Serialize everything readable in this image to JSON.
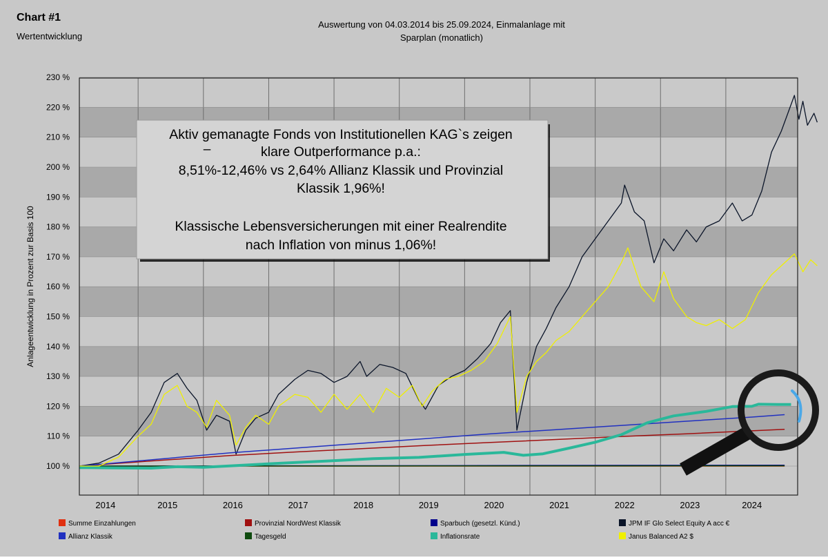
{
  "header": {
    "chart_number": "Chart #1",
    "chart_subtitle": "Wertentwicklung",
    "period_line1": "Auswertung von 04.03.2014 bis 25.09.2024, Einmalanlage mit",
    "period_line2": "Sparplan (monatlich)"
  },
  "annotation": {
    "lines": [
      "Aktiv gemanagte Fonds von Institutionellen KAG`s zeigen",
      "klare Outperformance p.a.:",
      "8,51%-12,46% vs 2,64% Allianz Klassik und Provinzial",
      "Klassik 1,96%!",
      "",
      "Klassische Lebensversicherungen mit einer Realrendite",
      "nach Inflation von minus 1,06%!"
    ],
    "dash": "–"
  },
  "colors": {
    "background": "#c8c8c8",
    "band_dark": "#a9a9a9",
    "band_light": "#c9c9c9",
    "magnifier": "#1a1a1a",
    "magnifier_highlight": "#4aa8e8"
  },
  "chart_data": {
    "type": "line",
    "ylabel": "Anlageentwicklung  in Prozent zur Basis 100",
    "ylim": [
      90,
      230
    ],
    "xlim": [
      2013.7,
      2024.7
    ],
    "yticks": [
      100,
      110,
      120,
      130,
      140,
      150,
      160,
      170,
      180,
      190,
      200,
      210,
      220,
      230
    ],
    "ytick_labels": [
      "100 %",
      "110 %",
      "120 %",
      "130 %",
      "140 %",
      "150 %",
      "160 %",
      "170 %",
      "180 %",
      "190 %",
      "200 %",
      "210 %",
      "220 %",
      "230 %"
    ],
    "xticks": [
      2014.1,
      2015.05,
      2016.05,
      2017.05,
      2018.05,
      2019.05,
      2020.05,
      2021.05,
      2022.05,
      2023.05,
      2024.0
    ],
    "xtick_labels": [
      "2014",
      "2015",
      "2016",
      "2017",
      "2018",
      "2019",
      "2020",
      "2021",
      "2022",
      "2023",
      "2024"
    ],
    "year_boundaries": [
      2014.6,
      2015.6,
      2016.6,
      2017.6,
      2018.6,
      2019.6,
      2020.6,
      2021.6,
      2022.6,
      2023.6
    ],
    "grid": true,
    "legend_position": "bottom",
    "series": [
      {
        "name": "Summe Einzahlungen",
        "color": "#e03010",
        "width": 1.5,
        "points": [
          [
            2013.7,
            100
          ],
          [
            2024.5,
            100
          ]
        ]
      },
      {
        "name": "Provinzial NordWest Klassik",
        "color": "#a01010",
        "width": 1.5,
        "points": [
          [
            2013.7,
            100
          ],
          [
            2015,
            102
          ],
          [
            2016,
            103.5
          ],
          [
            2017,
            104.7
          ],
          [
            2018,
            105.8
          ],
          [
            2019,
            106.9
          ],
          [
            2020,
            107.9
          ],
          [
            2021,
            108.9
          ],
          [
            2022,
            109.9
          ],
          [
            2023,
            110.8
          ],
          [
            2024,
            111.8
          ],
          [
            2024.5,
            112.3
          ]
        ]
      },
      {
        "name": "Sparbuch (gesetzl. Künd.)",
        "color": "#00008b",
        "width": 1.5,
        "points": [
          [
            2013.7,
            100
          ],
          [
            2024.5,
            100.3
          ]
        ]
      },
      {
        "name": "JPM IF Glo Select Equity A acc €",
        "color": "#0a1428",
        "width": 1.3,
        "points": [
          [
            2013.7,
            100
          ],
          [
            2014,
            101
          ],
          [
            2014.3,
            104
          ],
          [
            2014.6,
            112
          ],
          [
            2014.8,
            118
          ],
          [
            2015.0,
            128
          ],
          [
            2015.2,
            131
          ],
          [
            2015.35,
            126
          ],
          [
            2015.5,
            122
          ],
          [
            2015.65,
            112
          ],
          [
            2015.8,
            117
          ],
          [
            2016.0,
            115
          ],
          [
            2016.1,
            104
          ],
          [
            2016.25,
            112
          ],
          [
            2016.4,
            116
          ],
          [
            2016.6,
            118
          ],
          [
            2016.75,
            124
          ],
          [
            2017.0,
            129
          ],
          [
            2017.2,
            132
          ],
          [
            2017.4,
            131
          ],
          [
            2017.6,
            128
          ],
          [
            2017.8,
            130
          ],
          [
            2018.0,
            135
          ],
          [
            2018.1,
            130
          ],
          [
            2018.3,
            134
          ],
          [
            2018.5,
            133
          ],
          [
            2018.7,
            131
          ],
          [
            2018.9,
            122
          ],
          [
            2019.0,
            119
          ],
          [
            2019.2,
            127
          ],
          [
            2019.4,
            130
          ],
          [
            2019.6,
            132
          ],
          [
            2019.8,
            136
          ],
          [
            2020.0,
            141
          ],
          [
            2020.15,
            148
          ],
          [
            2020.3,
            152
          ],
          [
            2020.4,
            112
          ],
          [
            2020.55,
            128
          ],
          [
            2020.7,
            140
          ],
          [
            2020.85,
            146
          ],
          [
            2021.0,
            153
          ],
          [
            2021.2,
            160
          ],
          [
            2021.4,
            170
          ],
          [
            2021.6,
            176
          ],
          [
            2021.8,
            182
          ],
          [
            2022.0,
            188
          ],
          [
            2022.05,
            194
          ],
          [
            2022.2,
            185
          ],
          [
            2022.35,
            182
          ],
          [
            2022.5,
            168
          ],
          [
            2022.65,
            176
          ],
          [
            2022.8,
            172
          ],
          [
            2023.0,
            179
          ],
          [
            2023.15,
            175
          ],
          [
            2023.3,
            180
          ],
          [
            2023.5,
            182
          ],
          [
            2023.7,
            188
          ],
          [
            2023.85,
            182
          ],
          [
            2024.0,
            184
          ],
          [
            2024.15,
            192
          ],
          [
            2024.3,
            205
          ],
          [
            2024.45,
            212
          ],
          [
            2024.55,
            218
          ],
          [
            2024.65,
            224
          ],
          [
            2024.72,
            216
          ],
          [
            2024.78,
            222
          ],
          [
            2024.85,
            214
          ],
          [
            2024.95,
            218
          ],
          [
            2025.0,
            215
          ]
        ]
      },
      {
        "name": "Allianz Klassik",
        "color": "#2030c0",
        "width": 1.5,
        "points": [
          [
            2013.7,
            100
          ],
          [
            2015,
            102.5
          ],
          [
            2016,
            104.4
          ],
          [
            2017,
            106
          ],
          [
            2018,
            107.6
          ],
          [
            2019,
            109.2
          ],
          [
            2020,
            110.8
          ],
          [
            2021,
            112.2
          ],
          [
            2022,
            113.6
          ],
          [
            2023,
            115
          ],
          [
            2024,
            116.4
          ],
          [
            2024.5,
            117.2
          ]
        ]
      },
      {
        "name": "Tagesgeld",
        "color": "#0e4a0e",
        "width": 1.5,
        "points": [
          [
            2013.7,
            100
          ],
          [
            2024.5,
            100.1
          ]
        ]
      },
      {
        "name": "Inflationsrate",
        "color": "#2ab89a",
        "width": 4,
        "points": [
          [
            2013.7,
            99.5
          ],
          [
            2014.2,
            99.4
          ],
          [
            2014.8,
            99.3
          ],
          [
            2015.2,
            99.8
          ],
          [
            2015.6,
            99.6
          ],
          [
            2016.2,
            100.3
          ],
          [
            2016.8,
            101
          ],
          [
            2017.5,
            101.7
          ],
          [
            2018.2,
            102.5
          ],
          [
            2018.9,
            102.9
          ],
          [
            2019.6,
            103.9
          ],
          [
            2020.2,
            104.6
          ],
          [
            2020.5,
            103.6
          ],
          [
            2020.8,
            104.1
          ],
          [
            2021.2,
            106
          ],
          [
            2021.6,
            108
          ],
          [
            2022.0,
            110.5
          ],
          [
            2022.4,
            114.5
          ],
          [
            2022.8,
            116.8
          ],
          [
            2023.3,
            118.3
          ],
          [
            2023.7,
            119.9
          ],
          [
            2024.0,
            120
          ],
          [
            2024.1,
            120.7
          ],
          [
            2024.4,
            120.6
          ],
          [
            2024.6,
            120.6
          ]
        ]
      },
      {
        "name": "Janus Balanced A2 $",
        "color": "#f0f000",
        "width": 1.3,
        "points": [
          [
            2013.7,
            100
          ],
          [
            2014,
            100
          ],
          [
            2014.3,
            103
          ],
          [
            2014.6,
            110
          ],
          [
            2014.8,
            114
          ],
          [
            2015.0,
            124
          ],
          [
            2015.2,
            127
          ],
          [
            2015.35,
            120
          ],
          [
            2015.5,
            118
          ],
          [
            2015.65,
            113
          ],
          [
            2015.8,
            122
          ],
          [
            2016.0,
            117
          ],
          [
            2016.1,
            107
          ],
          [
            2016.25,
            113
          ],
          [
            2016.4,
            117
          ],
          [
            2016.6,
            114
          ],
          [
            2016.75,
            120
          ],
          [
            2017.0,
            124
          ],
          [
            2017.2,
            123
          ],
          [
            2017.4,
            118
          ],
          [
            2017.6,
            124
          ],
          [
            2017.8,
            119
          ],
          [
            2018.0,
            124
          ],
          [
            2018.2,
            118
          ],
          [
            2018.4,
            126
          ],
          [
            2018.6,
            123
          ],
          [
            2018.8,
            127
          ],
          [
            2018.95,
            120
          ],
          [
            2019.1,
            125
          ],
          [
            2019.3,
            129
          ],
          [
            2019.5,
            130
          ],
          [
            2019.7,
            132
          ],
          [
            2019.9,
            135
          ],
          [
            2020.1,
            141
          ],
          [
            2020.3,
            150
          ],
          [
            2020.4,
            118
          ],
          [
            2020.55,
            130
          ],
          [
            2020.7,
            135
          ],
          [
            2020.85,
            138
          ],
          [
            2021.0,
            142
          ],
          [
            2021.2,
            145
          ],
          [
            2021.4,
            150
          ],
          [
            2021.6,
            155
          ],
          [
            2021.8,
            160
          ],
          [
            2022.0,
            168
          ],
          [
            2022.1,
            173
          ],
          [
            2022.3,
            160
          ],
          [
            2022.5,
            155
          ],
          [
            2022.65,
            165
          ],
          [
            2022.8,
            156
          ],
          [
            2023.0,
            150
          ],
          [
            2023.15,
            148
          ],
          [
            2023.3,
            147
          ],
          [
            2023.5,
            149
          ],
          [
            2023.7,
            146
          ],
          [
            2023.9,
            149
          ],
          [
            2024.1,
            158
          ],
          [
            2024.3,
            164
          ],
          [
            2024.5,
            168
          ],
          [
            2024.65,
            171
          ],
          [
            2024.78,
            165
          ],
          [
            2024.9,
            169
          ],
          [
            2025.0,
            167
          ]
        ]
      }
    ]
  }
}
